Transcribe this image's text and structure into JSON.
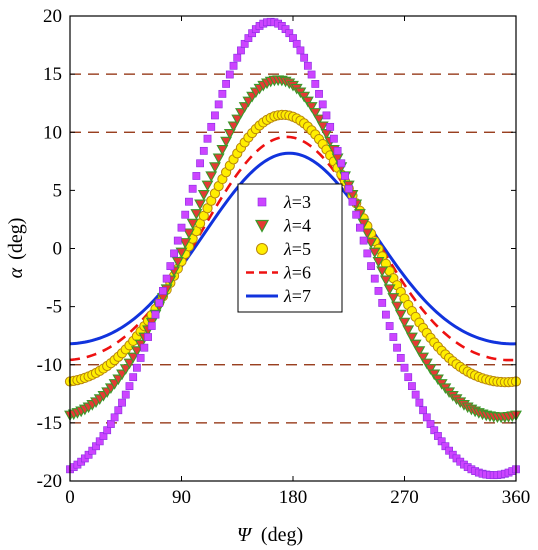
{
  "chart_data": {
    "type": "line",
    "xlabel_symbol": "Ψ",
    "xlabel_unit": "(deg)",
    "ylabel_symbol": "α",
    "ylabel_unit": "(deg)",
    "xlim": [
      0,
      360
    ],
    "ylim": [
      -20,
      20
    ],
    "xticks": [
      "0",
      "90",
      "180",
      "270",
      "360"
    ],
    "xtick_values": [
      0,
      90,
      180,
      270,
      360
    ],
    "yticks": [
      "20",
      "15",
      "10",
      "5",
      "0",
      "-5",
      "-10",
      "-15",
      "-20"
    ],
    "ytick_values": [
      20,
      15,
      10,
      5,
      0,
      -5,
      -10,
      -15,
      -20
    ],
    "reference_lines": [
      15,
      10,
      -10,
      -15
    ],
    "reference_color": "#8b2500",
    "legend_position": "center",
    "series": [
      {
        "name": "λ=3",
        "label_symbol": "λ",
        "label_value": "=3",
        "style": "square",
        "color": "#cc44ff",
        "edge": "#8a2be2",
        "amplitude": 19.5,
        "peak_at": 162
      },
      {
        "name": "λ=4",
        "label_symbol": "λ",
        "label_value": "=4",
        "style": "triangle",
        "color": "#e53935",
        "edge": "#3a9a2a",
        "amplitude": 14.5,
        "peak_at": 168
      },
      {
        "name": "λ=5",
        "label_symbol": "λ",
        "label_value": "=5",
        "style": "circle",
        "color": "#ffee00",
        "edge": "#b8860b",
        "amplitude": 11.5,
        "peak_at": 172
      },
      {
        "name": "λ=6",
        "label_symbol": "λ",
        "label_value": "=6",
        "style": "dashed",
        "color": "#ee1111",
        "edge": "#ee1111",
        "amplitude": 9.6,
        "peak_at": 175
      },
      {
        "name": "λ=7",
        "label_symbol": "λ",
        "label_value": "=7",
        "style": "solid",
        "color": "#1133dd",
        "edge": "#1133dd",
        "amplitude": 8.2,
        "peak_at": 177
      }
    ]
  }
}
